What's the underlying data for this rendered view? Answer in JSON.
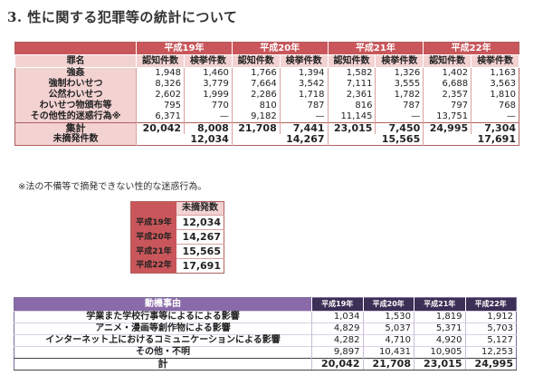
{
  "title": "3. 性に関する犯罪等の統計について",
  "main_table": {
    "years": [
      "平成19年",
      "平成20年",
      "平成21年",
      "平成22年"
    ],
    "sub_headers": [
      "認知件数",
      "検挙件数"
    ],
    "name_header": "罪名",
    "rows": [
      {
        "name": "強姦",
        "values": [
          "1,948",
          "1,460",
          "1,766",
          "1,394",
          "1,582",
          "1,326",
          "1,402",
          "1,163"
        ]
      },
      {
        "name": "強制わいせつ",
        "values": [
          "8,326",
          "3,779",
          "7,664",
          "3,542",
          "7,111",
          "3,555",
          "6,688",
          "3,563"
        ]
      },
      {
        "name": "公然わいせつ",
        "values": [
          "2,602",
          "1,999",
          "2,286",
          "1,718",
          "2,361",
          "1,782",
          "2,357",
          "1,810"
        ]
      },
      {
        "name": "わいせつ物頒布等",
        "values": [
          "795",
          "770",
          "810",
          "787",
          "816",
          "787",
          "797",
          "768"
        ]
      },
      {
        "name": "その他性的迷惑行為※",
        "values": [
          "6,371",
          "—",
          "9,182",
          "—",
          "11,145",
          "—",
          "13,751",
          "—"
        ]
      }
    ],
    "total": {
      "name": "集計",
      "values": [
        "20,042",
        "8,008",
        "21,708",
        "7,441",
        "23,015",
        "7,450",
        "24,995",
        "7,304"
      ]
    },
    "unclosed": {
      "name": "未摘発件数",
      "values": [
        "12,034",
        "14,267",
        "15,565",
        "17,691"
      ]
    }
  },
  "note": "※法の不備等で摘発できない性的な迷惑行為。",
  "small_table": {
    "header": "未摘発数",
    "rows": [
      {
        "year": "平成19年",
        "value": "12,034"
      },
      {
        "year": "平成20年",
        "value": "14,267"
      },
      {
        "year": "平成21年",
        "value": "15,565"
      },
      {
        "year": "平成22年",
        "value": "17,691"
      }
    ]
  },
  "motive_table": {
    "header": "動機事由",
    "years": [
      "平成19年",
      "平成20年",
      "平成21年",
      "平成22年"
    ],
    "rows": [
      {
        "name": "学業また学校行事等によるによる影響",
        "values": [
          "1,034",
          "1,530",
          "1,819",
          "1,912"
        ]
      },
      {
        "name": "アニメ・漫画等創作物による影響",
        "values": [
          "4,829",
          "5,037",
          "5,371",
          "5,703"
        ]
      },
      {
        "name": "インターネット上におけるコミュニケーションによる影響",
        "values": [
          "4,282",
          "4,710",
          "4,920",
          "5,127"
        ]
      },
      {
        "name": "その他・不明",
        "values": [
          "9,897",
          "10,431",
          "10,905",
          "12,253"
        ]
      }
    ],
    "total": {
      "name": "計",
      "values": [
        "20,042",
        "21,708",
        "23,015",
        "24,995"
      ]
    }
  },
  "colors": {
    "header_red": "#c9565a",
    "pink": "#f3d2d2",
    "purple": "#8a6aa8",
    "dark_purple": "#3d2f56"
  }
}
